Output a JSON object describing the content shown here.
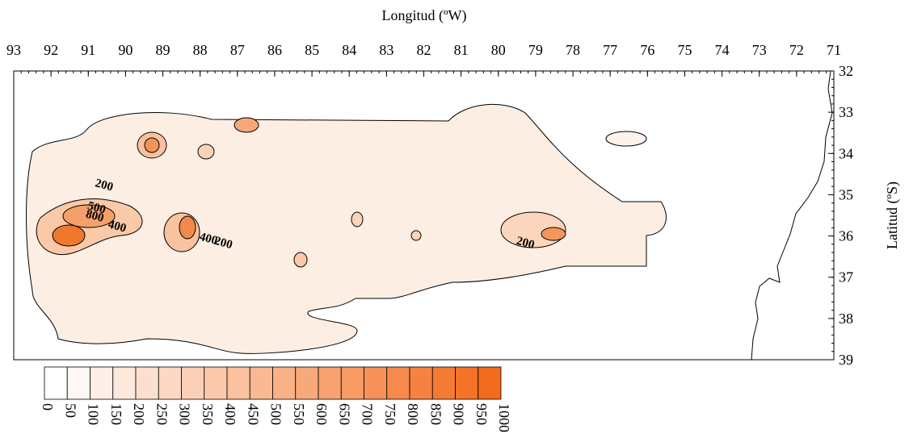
{
  "map": {
    "x_axis": {
      "label": "Longitud (ºW)",
      "ticks": [
        93,
        92,
        91,
        90,
        89,
        88,
        87,
        86,
        85,
        84,
        83,
        82,
        81,
        80,
        79,
        78,
        77,
        76,
        75,
        74,
        73,
        72,
        71
      ]
    },
    "y_axis": {
      "label": "Latitud (ºS)",
      "ticks": [
        32,
        33,
        34,
        35,
        36,
        37,
        38,
        39
      ]
    },
    "colorbar": {
      "levels": [
        0,
        50,
        100,
        150,
        200,
        250,
        300,
        350,
        400,
        450,
        500,
        550,
        600,
        650,
        700,
        750,
        800,
        850,
        900,
        950,
        1000
      ],
      "color_low": "#ffffff",
      "color_high": "#f36b1c"
    },
    "contour_labels": [
      {
        "text": "200",
        "lon": 90.6,
        "lat": 34.85
      },
      {
        "text": "500",
        "lon": 90.8,
        "lat": 35.4
      },
      {
        "text": "800",
        "lon": 90.85,
        "lat": 35.6
      },
      {
        "text": "400",
        "lon": 90.25,
        "lat": 35.85
      },
      {
        "text": "400",
        "lon": 87.8,
        "lat": 36.15
      },
      {
        "text": "200",
        "lon": 87.4,
        "lat": 36.25
      },
      {
        "text": "200",
        "lon": 79.3,
        "lat": 36.25
      }
    ]
  }
}
